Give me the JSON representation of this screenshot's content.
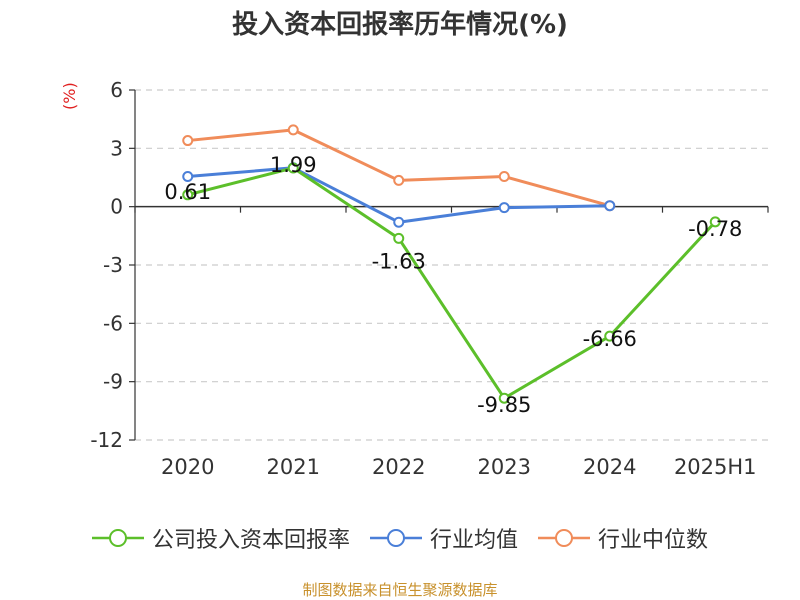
{
  "title": "投入资本回报率历年情况(%)",
  "y_unit": "(%)",
  "source": "制图数据来自恒生聚源数据库",
  "chart_data": {
    "type": "line",
    "title": "投入资本回报率历年情况(%)",
    "ylabel": "(%)",
    "xlabel": "",
    "categories": [
      "2020",
      "2021",
      "2022",
      "2023",
      "2024",
      "2025H1"
    ],
    "ylim": [
      -12,
      6
    ],
    "yticks": [
      6,
      3,
      0,
      -3,
      -6,
      -9,
      -12
    ],
    "grid": true,
    "legend": "bottom",
    "series": [
      {
        "name": "公司投入资本回报率",
        "color": "#5cbf2a",
        "values": [
          0.61,
          1.99,
          -1.63,
          -9.85,
          -6.66,
          -0.78
        ],
        "labels": [
          "0.61",
          "1.99",
          "-1.63",
          "-9.85",
          "-6.66",
          "-0.78"
        ]
      },
      {
        "name": "行业均值",
        "color": "#4a7fd8",
        "values": [
          1.55,
          2.0,
          -0.8,
          -0.05,
          0.05,
          null
        ]
      },
      {
        "name": "行业中位数",
        "color": "#f08c5a",
        "values": [
          3.4,
          3.95,
          1.35,
          1.55,
          0.05,
          null
        ]
      }
    ]
  }
}
